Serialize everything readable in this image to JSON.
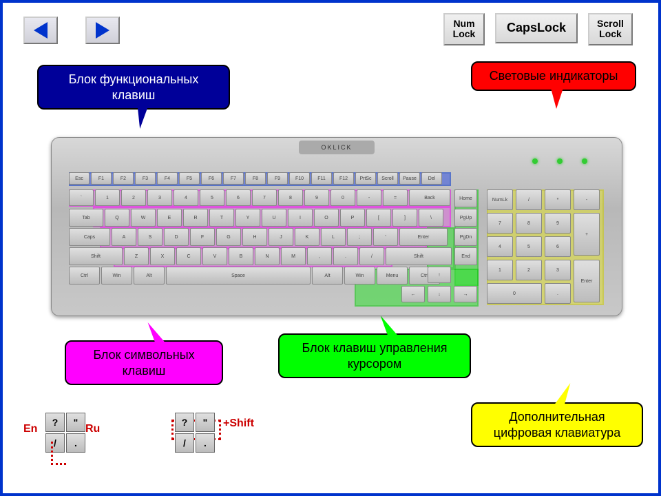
{
  "nav": {
    "prev_icon": "triangle-left",
    "next_icon": "triangle-right"
  },
  "lock_buttons": {
    "num": "Num\nLock",
    "caps": "CapsLock",
    "scroll": "Scroll\nLock"
  },
  "callouts": {
    "func": {
      "text": "Блок функциональных клавиш",
      "bg": "#000099",
      "fg": "#ffffff",
      "points_to": "function-keys-zone"
    },
    "indicators": {
      "text": "Световые индикаторы",
      "bg": "#ff0000",
      "fg": "#000000",
      "points_to": "led-indicators"
    },
    "symbolic": {
      "text": "Блок символьных клавиш",
      "bg": "#ff00ff",
      "fg": "#000000",
      "points_to": "symbolic-keys-zone"
    },
    "cursor": {
      "text": "Блок клавиш управления курсором",
      "bg": "#00ff00",
      "fg": "#000000",
      "points_to": "cursor-keys-zone"
    },
    "numpad": {
      "text": "Дополнительная цифровая клавиатура",
      "bg": "#ffff00",
      "fg": "#000000",
      "points_to": "numpad-zone"
    }
  },
  "keyboard": {
    "brand": "OKLICK",
    "body_color": "#c8c8c8",
    "zones": {
      "function": {
        "color": "#3050e0"
      },
      "symbolic": {
        "color": "#e070e0"
      },
      "cursor": {
        "color": "#30e030"
      },
      "numpad": {
        "color": "#e0e030"
      }
    },
    "function_row": [
      "Esc",
      "F1",
      "F2",
      "F3",
      "F4",
      "F5",
      "F6",
      "F7",
      "F8",
      "F9",
      "F10",
      "F11",
      "F12",
      "PrtSc",
      "Scroll",
      "Pause",
      "Del"
    ],
    "num_row": [
      "`",
      "1",
      "2",
      "3",
      "4",
      "5",
      "6",
      "7",
      "8",
      "9",
      "0",
      "-",
      "=",
      "Back"
    ],
    "qwerty_row": [
      "Tab",
      "Q",
      "W",
      "E",
      "R",
      "T",
      "Y",
      "U",
      "I",
      "O",
      "P",
      "[",
      "]",
      "\\"
    ],
    "home_row": [
      "Caps",
      "A",
      "S",
      "D",
      "F",
      "G",
      "H",
      "J",
      "K",
      "L",
      ";",
      "'",
      "Enter"
    ],
    "shift_row": [
      "Shift",
      "Z",
      "X",
      "C",
      "V",
      "B",
      "N",
      "M",
      ",",
      ".",
      "/",
      "Shift"
    ],
    "bottom_row": [
      "Ctrl",
      "Win",
      "Alt",
      "Space",
      "Alt",
      "Win",
      "Menu",
      "Ctrl"
    ],
    "cursor_block": [
      "Home",
      "End",
      "PgUp",
      "PgDn",
      "↑",
      "←",
      "↓",
      "→"
    ],
    "numpad": [
      "NumLk",
      "/",
      "*",
      "-",
      "7",
      "8",
      "9",
      "+",
      "4",
      "5",
      "6",
      "1",
      "2",
      "3",
      "Enter",
      "0",
      "."
    ],
    "led_count": 3
  },
  "legend": {
    "en_label": "En",
    "ru_label": "Ru",
    "shift_label": "+Shift",
    "mini_keys_pair1": [
      "?",
      "\""
    ],
    "mini_keys_pair1b": [
      "/",
      "."
    ],
    "mini_keys_pair2": [
      "?",
      "\""
    ],
    "mini_keys_pair2b": [
      "/",
      "."
    ],
    "label_color": "#cc0000"
  },
  "frame_border_color": "#0033cc"
}
